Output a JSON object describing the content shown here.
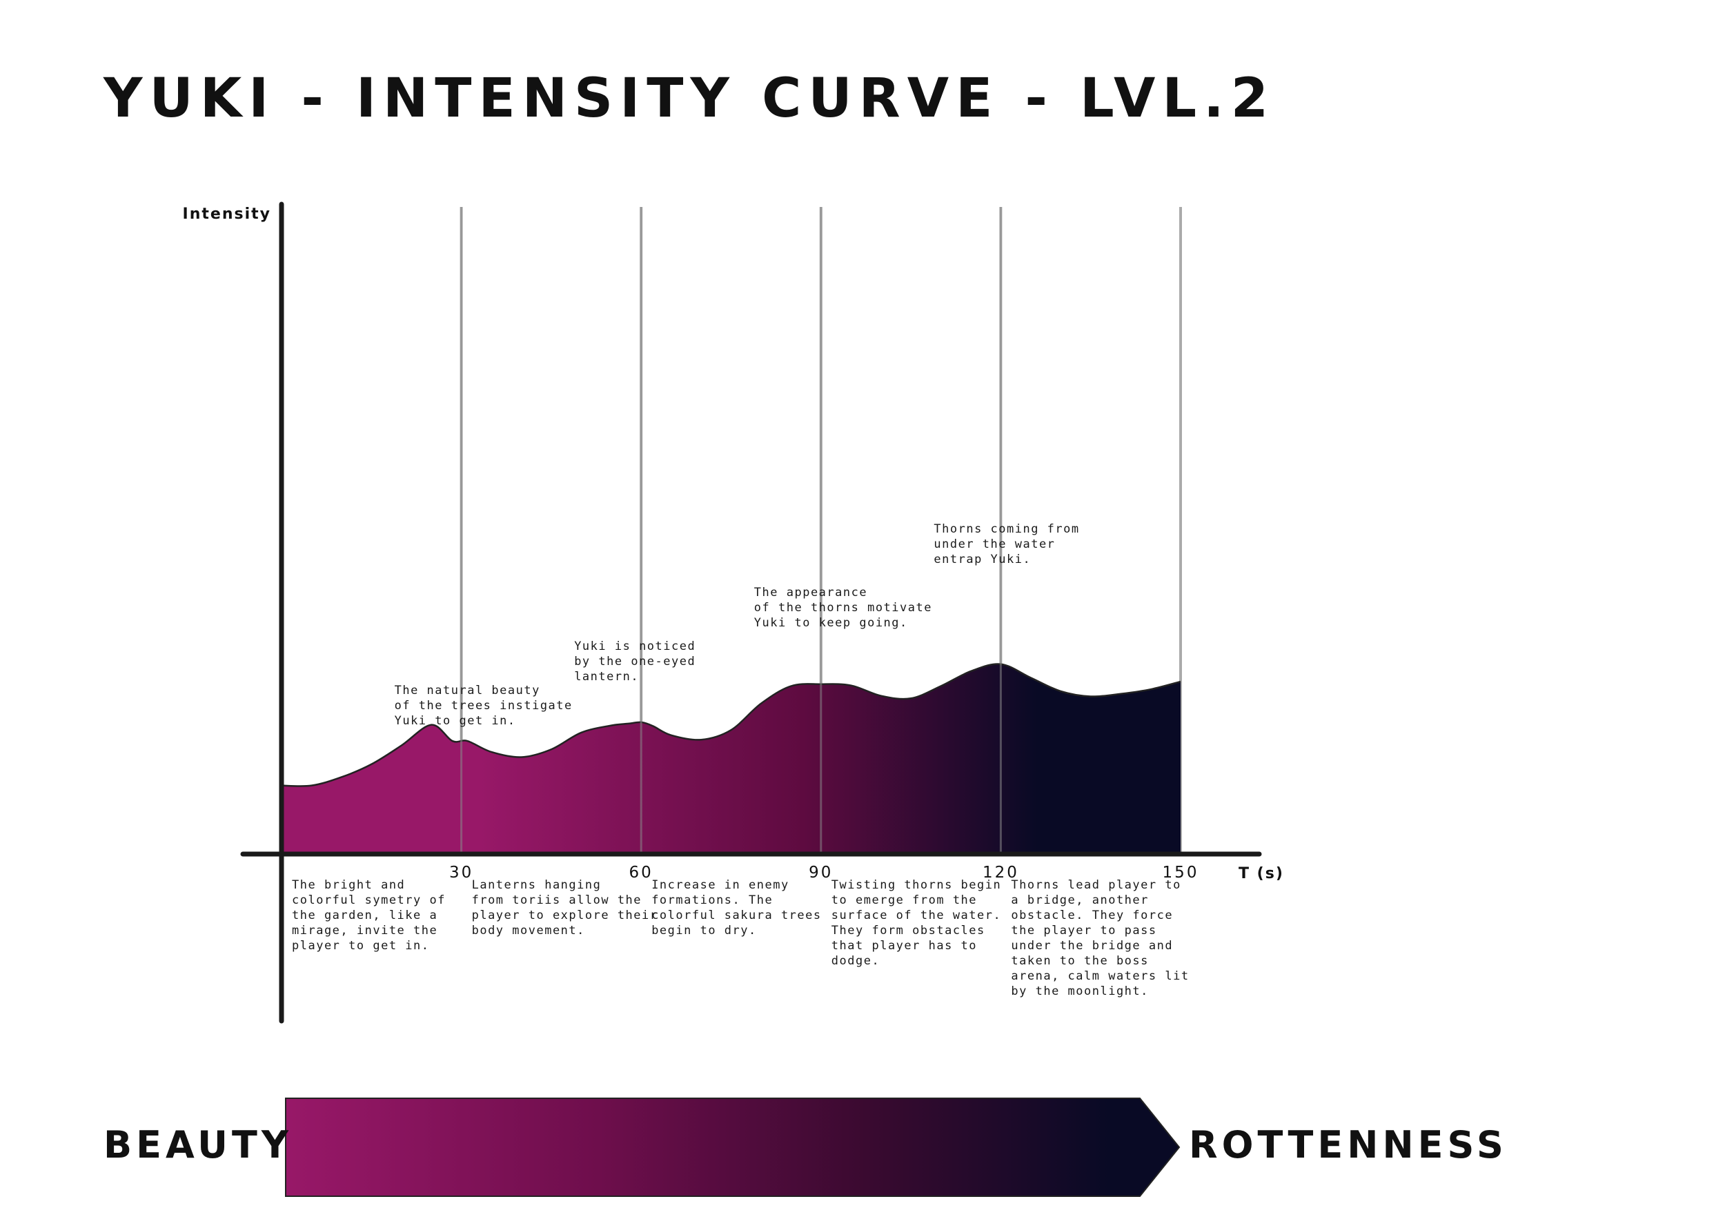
{
  "title": "YUKI - INTENSITY CURVE - LVL.2",
  "chart_data": {
    "type": "area",
    "title": "YUKI - INTENSITY CURVE - LVL.2",
    "xlabel": "T (s)",
    "ylabel": "Intensity",
    "x_ticks": [
      30,
      60,
      90,
      120,
      150
    ],
    "xlim": [
      0,
      150
    ],
    "ylim": [
      0,
      100
    ],
    "grid": true,
    "series": [
      {
        "x": [
          0,
          5,
          10,
          15,
          20,
          25,
          28.5,
          31,
          35,
          40,
          45,
          50,
          55,
          58,
          60,
          62,
          65,
          70,
          75,
          80,
          85,
          90,
          95,
          100,
          105,
          110,
          115,
          120,
          125,
          130,
          135,
          140,
          145,
          150
        ],
        "y": [
          10.4,
          10.4,
          11.7,
          13.7,
          16.6,
          19.8,
          17.3,
          17.3,
          15.6,
          14.8,
          16.0,
          18.6,
          19.7,
          20.0,
          20.2,
          19.6,
          18.2,
          17.5,
          19.0,
          23.1,
          25.8,
          26.1,
          25.9,
          24.3,
          23.9,
          25.8,
          28.1,
          29.2,
          27.1,
          25.0,
          24.2,
          24.6,
          25.3,
          26.5
        ]
      }
    ],
    "gradient_colors": [
      "#981868",
      "#981868",
      "#5e0b40",
      "#090a25",
      "#090a25"
    ],
    "point_annotations": [
      {
        "x": 30,
        "text": [
          "The natural beauty",
          "of the trees instigate",
          "Yuki to get in."
        ]
      },
      {
        "x": 60,
        "text": [
          "Yuki is noticed",
          "by the one-eyed",
          "lantern."
        ]
      },
      {
        "x": 90,
        "text": [
          "The appearance",
          "of the thorns motivate",
          "Yuki to keep going."
        ]
      },
      {
        "x": 120,
        "text": [
          "Thorns coming from",
          "under the water",
          "entrap Yuki."
        ]
      }
    ],
    "segment_annotations": [
      {
        "x_start": 0,
        "x_end": 30,
        "text": [
          "The bright and",
          "colorful symetry of",
          "the garden, like a",
          "mirage, invite the",
          "player to get in."
        ]
      },
      {
        "x_start": 30,
        "x_end": 60,
        "text": [
          "Lanterns hanging",
          "from toriis allow the",
          "player to explore their",
          "body movement."
        ]
      },
      {
        "x_start": 60,
        "x_end": 90,
        "text": [
          "Increase in enemy",
          "formations. The",
          "colorful sakura trees",
          "begin to dry."
        ]
      },
      {
        "x_start": 90,
        "x_end": 120,
        "text": [
          "Twisting thorns begin",
          "to emerge from the",
          "surface of the water.",
          "They form obstacles",
          "that player has to",
          "dodge."
        ]
      },
      {
        "x_start": 120,
        "x_end": 150,
        "text": [
          "Thorns lead player to",
          "a bridge, another",
          "obstacle. They force",
          "the player to pass",
          "under the bridge and",
          "taken to the boss",
          "arena, calm waters lit",
          "by the moonlight."
        ]
      }
    ]
  },
  "legend": {
    "left_label": "BEAUTY",
    "right_label": "ROTTENNESS",
    "colors": [
      "#981868",
      "#6e0e4c",
      "#3a0a30",
      "#090a25"
    ]
  }
}
